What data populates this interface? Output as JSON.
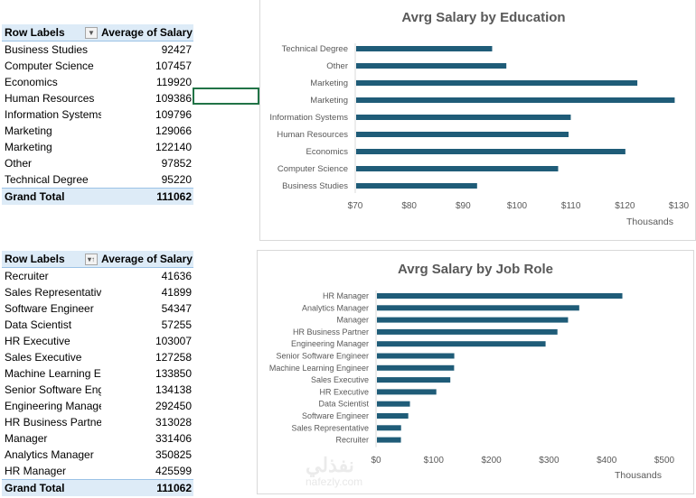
{
  "pivot_education": {
    "header": {
      "row_labels": "Row Labels",
      "value_label": "Average of Salary",
      "filter_icon": "dropdown-arrow-icon"
    },
    "rows": [
      {
        "label": "Business Studies",
        "value": "92427"
      },
      {
        "label": "Computer Science",
        "value": "107457"
      },
      {
        "label": "Economics",
        "value": "119920"
      },
      {
        "label": "Human Resources",
        "value": "109386"
      },
      {
        "label": "Information Systems",
        "value": "109796"
      },
      {
        "label": "Marketing",
        "value": "129066"
      },
      {
        "label": "Marketing",
        "value": "122140"
      },
      {
        "label": "Other",
        "value": "97852"
      },
      {
        "label": "Technical Degree",
        "value": "95220"
      }
    ],
    "total": {
      "label": "Grand Total",
      "value": "111062"
    }
  },
  "pivot_jobrole": {
    "header": {
      "row_labels": "Row Labels",
      "value_label": "Average of Salary",
      "filter_icon": "sort-ascending-icon"
    },
    "rows": [
      {
        "label": "Recruiter",
        "value": "41636"
      },
      {
        "label": "Sales Representative",
        "value": "41899"
      },
      {
        "label": "Software Engineer",
        "value": "54347"
      },
      {
        "label": "Data Scientist",
        "value": "57255"
      },
      {
        "label": "HR Executive",
        "value": "103007"
      },
      {
        "label": "Sales Executive",
        "value": "127258"
      },
      {
        "label": "Machine Learning En",
        "value": "133850"
      },
      {
        "label": "Senior Software Eng",
        "value": "134138"
      },
      {
        "label": "Engineering Manager",
        "value": "292450"
      },
      {
        "label": "HR Business Partner",
        "value": "313028"
      },
      {
        "label": "Manager",
        "value": "331406"
      },
      {
        "label": "Analytics Manager",
        "value": "350825"
      },
      {
        "label": "HR Manager",
        "value": "425599"
      }
    ],
    "total": {
      "label": "Grand Total",
      "value": "111062"
    }
  },
  "colors": {
    "bar": "#1f5c78",
    "header_fill": "#ddebf7",
    "selection": "#217346"
  },
  "watermark": {
    "logo_text": "نفذلي",
    "site": "nafezly.com"
  },
  "chart_data": [
    {
      "type": "bar",
      "orientation": "horizontal",
      "title": "Avrg Salary by Education",
      "categories": [
        "Technical Degree",
        "Other",
        "Marketing",
        "Marketing",
        "Information Systems",
        "Human Resources",
        "Economics",
        "Computer Science",
        "Business Studies"
      ],
      "values": [
        95220,
        97852,
        122140,
        129066,
        109796,
        109386,
        119920,
        107457,
        92427
      ],
      "xlim": [
        70000,
        130000
      ],
      "xticks": [
        70000,
        80000,
        90000,
        100000,
        110000,
        120000,
        130000
      ],
      "xtick_labels": [
        "$70",
        "$80",
        "$90",
        "$100",
        "$110",
        "$120",
        "$130"
      ],
      "xlabel": "Thousands",
      "grid": false,
      "legend": "none"
    },
    {
      "type": "bar",
      "orientation": "horizontal",
      "title": "Avrg Salary by Job Role",
      "categories": [
        "HR Manager",
        "Analytics Manager",
        "Manager",
        "HR Business Partner",
        "Engineering Manager",
        "Senior Software Engineer",
        "Machine Learning Engineer",
        "Sales Executive",
        "HR Executive",
        "Data Scientist",
        "Software Engineer",
        "Sales Representative",
        "Recruiter"
      ],
      "values": [
        425599,
        350825,
        331406,
        313028,
        292450,
        134138,
        133850,
        127258,
        103007,
        57255,
        54347,
        41899,
        41636
      ],
      "xlim": [
        0,
        500000
      ],
      "xticks": [
        0,
        100000,
        200000,
        300000,
        400000,
        500000
      ],
      "xtick_labels": [
        "$0",
        "$100",
        "$200",
        "$300",
        "$400",
        "$500"
      ],
      "xlabel": "Thousands",
      "grid": false,
      "legend": "none"
    }
  ]
}
